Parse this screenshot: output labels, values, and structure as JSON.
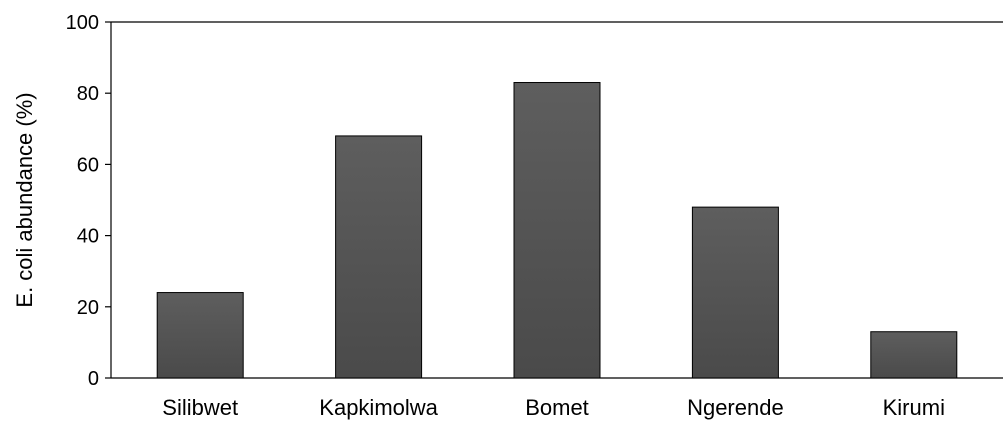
{
  "chart_data": {
    "type": "bar",
    "categories": [
      "Silibwet",
      "Kapkimolwa",
      "Bomet",
      "Ngerende",
      "Kirumi"
    ],
    "values": [
      24,
      68,
      83,
      48,
      13
    ],
    "title": "",
    "xlabel": "",
    "ylabel": "E. coli abundance (%)",
    "ylim": [
      0,
      100
    ],
    "yticks": [
      0,
      20,
      40,
      60,
      80,
      100
    ],
    "grid": false,
    "bar_color": "#595959"
  }
}
